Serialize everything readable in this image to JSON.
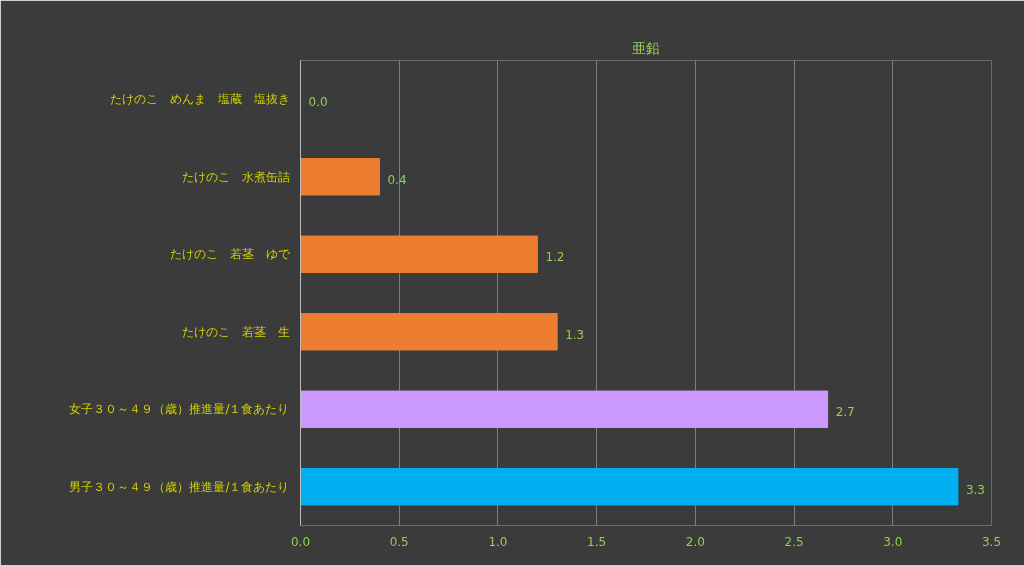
{
  "chart_data": {
    "type": "bar",
    "orientation": "horizontal",
    "title": "亜鉛",
    "categories": [
      "たけのこ　めんま　塩蔵　塩抜き",
      "たけのこ　水煮缶詰",
      "たけのこ　若茎　ゆで",
      "たけのこ　若茎　生",
      "女子３０～４９（歳）推進量/１食あたり",
      "男子３０～４９（歳）推進量/１食あたり"
    ],
    "values": [
      0.0,
      0.4,
      1.2,
      1.3,
      2.67,
      3.33
    ],
    "value_labels": [
      "0.0",
      "0.4",
      "1.2",
      "1.3",
      "2.7",
      "3.3"
    ],
    "colors": [
      "#ed7d31",
      "#ed7d31",
      "#ed7d31",
      "#ed7d31",
      "#cc99ff",
      "#00b0f0"
    ],
    "xlim": [
      0,
      3.5
    ],
    "xticks": [
      {
        "value": 0,
        "label": "0.0"
      },
      0.5,
      {
        "value": 1,
        "label": "1.0"
      },
      1.5,
      {
        "value": 2,
        "label": "2.0"
      },
      2.5,
      {
        "value": 3,
        "label": "3.0"
      },
      3.5
    ],
    "grid": "x"
  }
}
